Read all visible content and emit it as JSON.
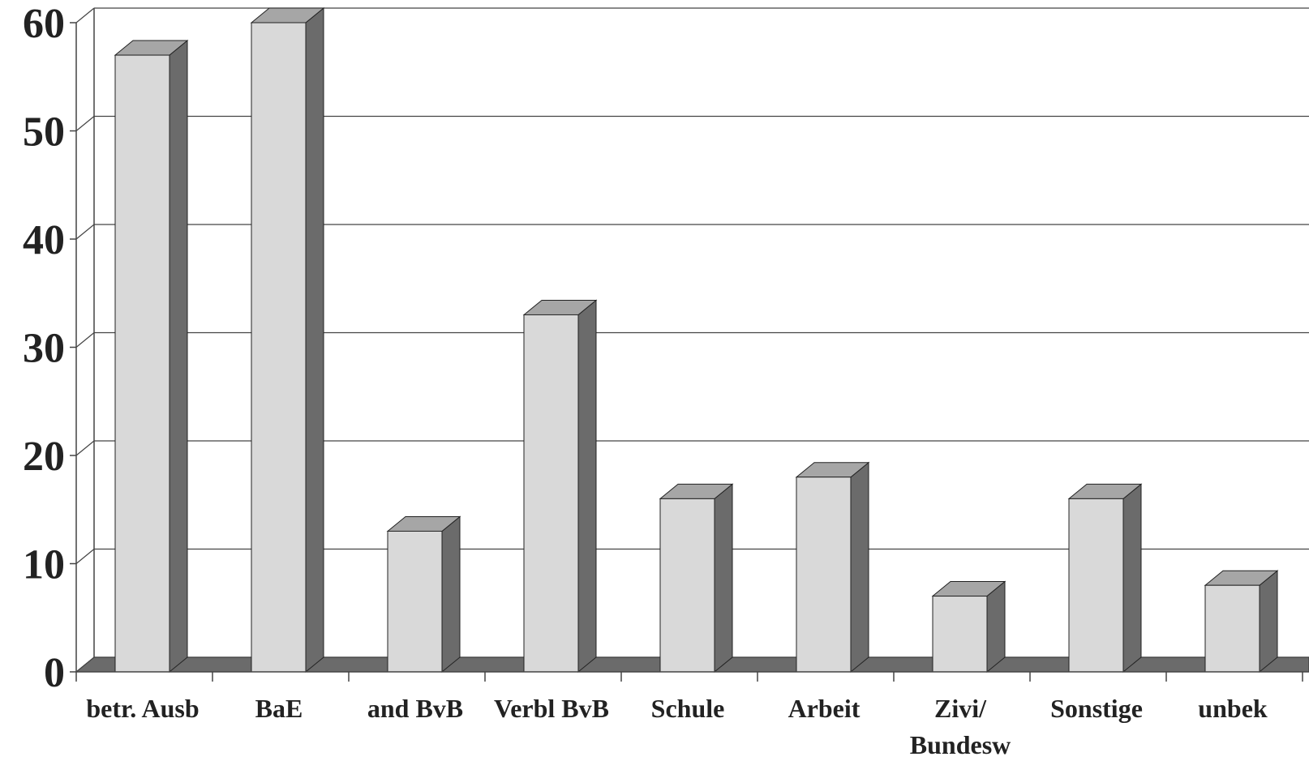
{
  "chart_data": {
    "type": "bar",
    "title": "",
    "xlabel": "",
    "ylabel": "",
    "categories": [
      [
        "betr. Ausb"
      ],
      [
        "BaE"
      ],
      [
        "and BvB"
      ],
      [
        "Verbl BvB"
      ],
      [
        "Schule"
      ],
      [
        "Arbeit"
      ],
      [
        "Zivi/",
        "Bundesw"
      ],
      [
        "Sonstige"
      ],
      [
        "unbek"
      ]
    ],
    "values": [
      57,
      60,
      13,
      33,
      16,
      18,
      7,
      16,
      8
    ],
    "ylim": [
      0,
      60
    ],
    "yticks": [
      "0",
      "10",
      "20",
      "30",
      "40",
      "50",
      "60"
    ],
    "grid": true,
    "style": "3d-column",
    "colors": {
      "bar_front": "#d9d9d9",
      "bar_top": "#a6a6a6",
      "bar_side": "#6b6b6b",
      "floor": "#6b6b6b",
      "grid": "#444444"
    }
  }
}
